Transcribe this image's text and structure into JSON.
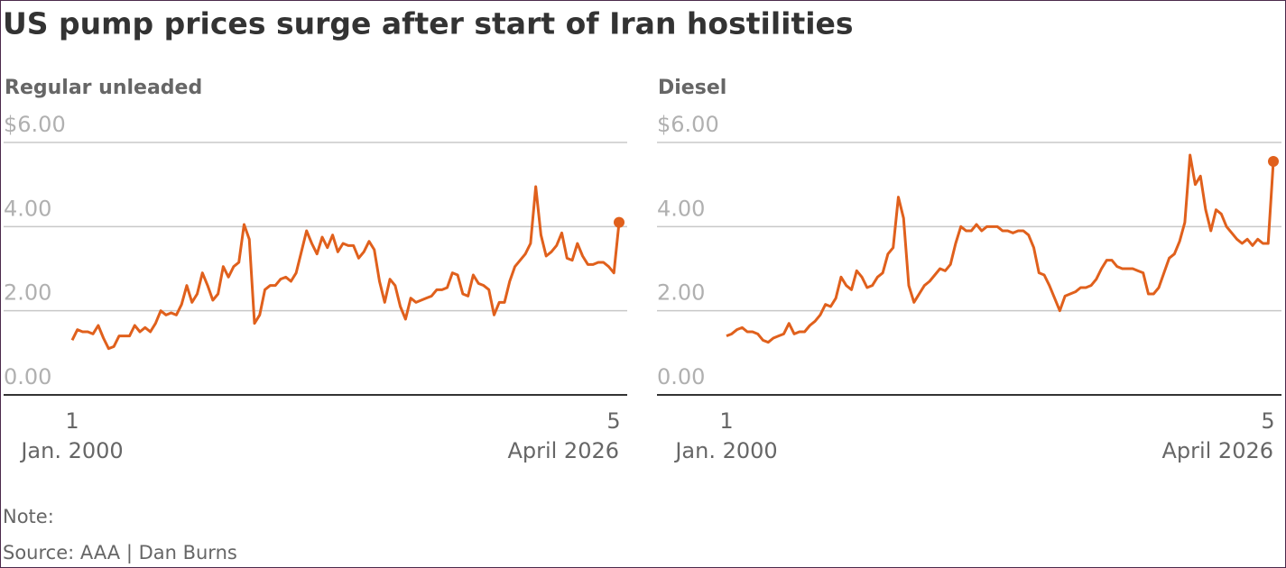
{
  "title": "US pump prices surge after start of Iran hostilities",
  "note": "Note:",
  "source": "Source: AAA | Dan Burns",
  "chart_data": [
    {
      "type": "line",
      "subtitle": "Regular unleaded",
      "color": "#e0601c",
      "grid": true,
      "end_marker": true,
      "ylim": [
        0,
        6
      ],
      "yticks": [
        {
          "value": 0,
          "label": "0.00"
        },
        {
          "value": 2,
          "label": "2.00"
        },
        {
          "value": 4,
          "label": "4.00"
        },
        {
          "value": 6,
          "label": "$6.00"
        }
      ],
      "category_days": [
        "1",
        null,
        null,
        null,
        null,
        null,
        null,
        null,
        null,
        null,
        null,
        null,
        null,
        null,
        null,
        null,
        null,
        null,
        null,
        null,
        null,
        null,
        null,
        null,
        null,
        null,
        null,
        null,
        null,
        null,
        null,
        null,
        null,
        null,
        null,
        null,
        null,
        null,
        null,
        null,
        null,
        null,
        null,
        null,
        null,
        null,
        null,
        null,
        null,
        null,
        null,
        null,
        null,
        null,
        null,
        null,
        null,
        null,
        null,
        null,
        null,
        null,
        null,
        null,
        null,
        null,
        null,
        null,
        null,
        null,
        null,
        null,
        null,
        null,
        null,
        null,
        null,
        null,
        null,
        null,
        null,
        null,
        null,
        null,
        null,
        null,
        null,
        null,
        null,
        null,
        null,
        null,
        null,
        null,
        null,
        null,
        null,
        null,
        null,
        null,
        null,
        null,
        null,
        null,
        null,
        "5"
      ],
      "categories": [
        "Jan. 2000",
        null,
        null,
        null,
        null,
        null,
        null,
        null,
        null,
        null,
        null,
        null,
        null,
        null,
        null,
        null,
        null,
        null,
        null,
        null,
        null,
        null,
        null,
        null,
        null,
        null,
        null,
        null,
        null,
        null,
        null,
        null,
        null,
        null,
        null,
        null,
        null,
        null,
        null,
        null,
        null,
        null,
        null,
        null,
        null,
        null,
        null,
        null,
        null,
        null,
        null,
        null,
        null,
        null,
        null,
        null,
        null,
        null,
        null,
        null,
        null,
        null,
        null,
        null,
        null,
        null,
        null,
        null,
        null,
        null,
        null,
        null,
        null,
        null,
        null,
        null,
        null,
        null,
        null,
        null,
        null,
        null,
        null,
        null,
        null,
        null,
        null,
        null,
        null,
        null,
        null,
        null,
        null,
        null,
        null,
        null,
        null,
        null,
        null,
        null,
        null,
        null,
        null,
        null,
        null,
        "April 2026"
      ],
      "values": [
        1.3,
        1.55,
        1.5,
        1.5,
        1.45,
        1.65,
        1.35,
        1.1,
        1.15,
        1.4,
        1.4,
        1.4,
        1.65,
        1.5,
        1.6,
        1.5,
        1.7,
        2.0,
        1.9,
        1.95,
        1.9,
        2.15,
        2.6,
        2.2,
        2.4,
        2.9,
        2.6,
        2.25,
        2.4,
        3.05,
        2.8,
        3.05,
        3.15,
        4.05,
        3.7,
        1.7,
        1.9,
        2.5,
        2.6,
        2.6,
        2.75,
        2.8,
        2.7,
        2.9,
        3.4,
        3.9,
        3.6,
        3.35,
        3.75,
        3.5,
        3.8,
        3.4,
        3.6,
        3.55,
        3.55,
        3.25,
        3.4,
        3.65,
        3.45,
        2.7,
        2.2,
        2.75,
        2.6,
        2.1,
        1.8,
        2.3,
        2.2,
        2.25,
        2.3,
        2.35,
        2.5,
        2.5,
        2.55,
        2.9,
        2.85,
        2.4,
        2.35,
        2.85,
        2.65,
        2.6,
        2.5,
        1.9,
        2.2,
        2.2,
        2.7,
        3.05,
        3.2,
        3.35,
        3.6,
        4.95,
        3.8,
        3.3,
        3.4,
        3.55,
        3.85,
        3.25,
        3.2,
        3.6,
        3.3,
        3.1,
        3.1,
        3.15,
        3.15,
        3.05,
        2.9,
        4.1
      ]
    },
    {
      "type": "line",
      "subtitle": "Diesel",
      "color": "#e0601c",
      "grid": true,
      "end_marker": true,
      "ylim": [
        0,
        6
      ],
      "yticks": [
        {
          "value": 0,
          "label": "0.00"
        },
        {
          "value": 2,
          "label": "2.00"
        },
        {
          "value": 4,
          "label": "4.00"
        },
        {
          "value": 6,
          "label": "$6.00"
        }
      ],
      "category_days": [
        "1",
        null,
        null,
        null,
        null,
        null,
        null,
        null,
        null,
        null,
        null,
        null,
        null,
        null,
        null,
        null,
        null,
        null,
        null,
        null,
        null,
        null,
        null,
        null,
        null,
        null,
        null,
        null,
        null,
        null,
        null,
        null,
        null,
        null,
        null,
        null,
        null,
        null,
        null,
        null,
        null,
        null,
        null,
        null,
        null,
        null,
        null,
        null,
        null,
        null,
        null,
        null,
        null,
        null,
        null,
        null,
        null,
        null,
        null,
        null,
        null,
        null,
        null,
        null,
        null,
        null,
        null,
        null,
        null,
        null,
        null,
        null,
        null,
        null,
        null,
        null,
        null,
        null,
        null,
        null,
        null,
        null,
        null,
        null,
        null,
        null,
        null,
        null,
        null,
        null,
        null,
        null,
        null,
        null,
        null,
        null,
        null,
        null,
        null,
        null,
        null,
        null,
        null,
        null,
        null,
        "5"
      ],
      "categories": [
        "Jan. 2000",
        null,
        null,
        null,
        null,
        null,
        null,
        null,
        null,
        null,
        null,
        null,
        null,
        null,
        null,
        null,
        null,
        null,
        null,
        null,
        null,
        null,
        null,
        null,
        null,
        null,
        null,
        null,
        null,
        null,
        null,
        null,
        null,
        null,
        null,
        null,
        null,
        null,
        null,
        null,
        null,
        null,
        null,
        null,
        null,
        null,
        null,
        null,
        null,
        null,
        null,
        null,
        null,
        null,
        null,
        null,
        null,
        null,
        null,
        null,
        null,
        null,
        null,
        null,
        null,
        null,
        null,
        null,
        null,
        null,
        null,
        null,
        null,
        null,
        null,
        null,
        null,
        null,
        null,
        null,
        null,
        null,
        null,
        null,
        null,
        null,
        null,
        null,
        null,
        null,
        null,
        null,
        null,
        null,
        null,
        null,
        null,
        null,
        null,
        null,
        null,
        null,
        null,
        null,
        null,
        "April 2026"
      ],
      "values": [
        1.4,
        1.45,
        1.55,
        1.6,
        1.5,
        1.5,
        1.45,
        1.3,
        1.25,
        1.35,
        1.4,
        1.45,
        1.7,
        1.45,
        1.5,
        1.5,
        1.65,
        1.75,
        1.9,
        2.15,
        2.1,
        2.3,
        2.8,
        2.6,
        2.5,
        2.95,
        2.8,
        2.55,
        2.6,
        2.8,
        2.9,
        3.35,
        3.5,
        4.7,
        4.2,
        2.6,
        2.2,
        2.4,
        2.6,
        2.7,
        2.85,
        3.0,
        2.95,
        3.1,
        3.6,
        4.0,
        3.9,
        3.9,
        4.05,
        3.9,
        4.0,
        4.0,
        4.0,
        3.9,
        3.9,
        3.85,
        3.9,
        3.9,
        3.8,
        3.5,
        2.9,
        2.85,
        2.6,
        2.3,
        2.0,
        2.35,
        2.4,
        2.45,
        2.55,
        2.55,
        2.6,
        2.75,
        3.0,
        3.2,
        3.2,
        3.05,
        3.0,
        3.0,
        3.0,
        2.95,
        2.9,
        2.4,
        2.4,
        2.55,
        2.9,
        3.25,
        3.35,
        3.65,
        4.1,
        5.7,
        5.0,
        5.2,
        4.4,
        3.9,
        4.4,
        4.3,
        4.0,
        3.85,
        3.7,
        3.6,
        3.7,
        3.55,
        3.7,
        3.6,
        3.6,
        5.55
      ]
    }
  ]
}
